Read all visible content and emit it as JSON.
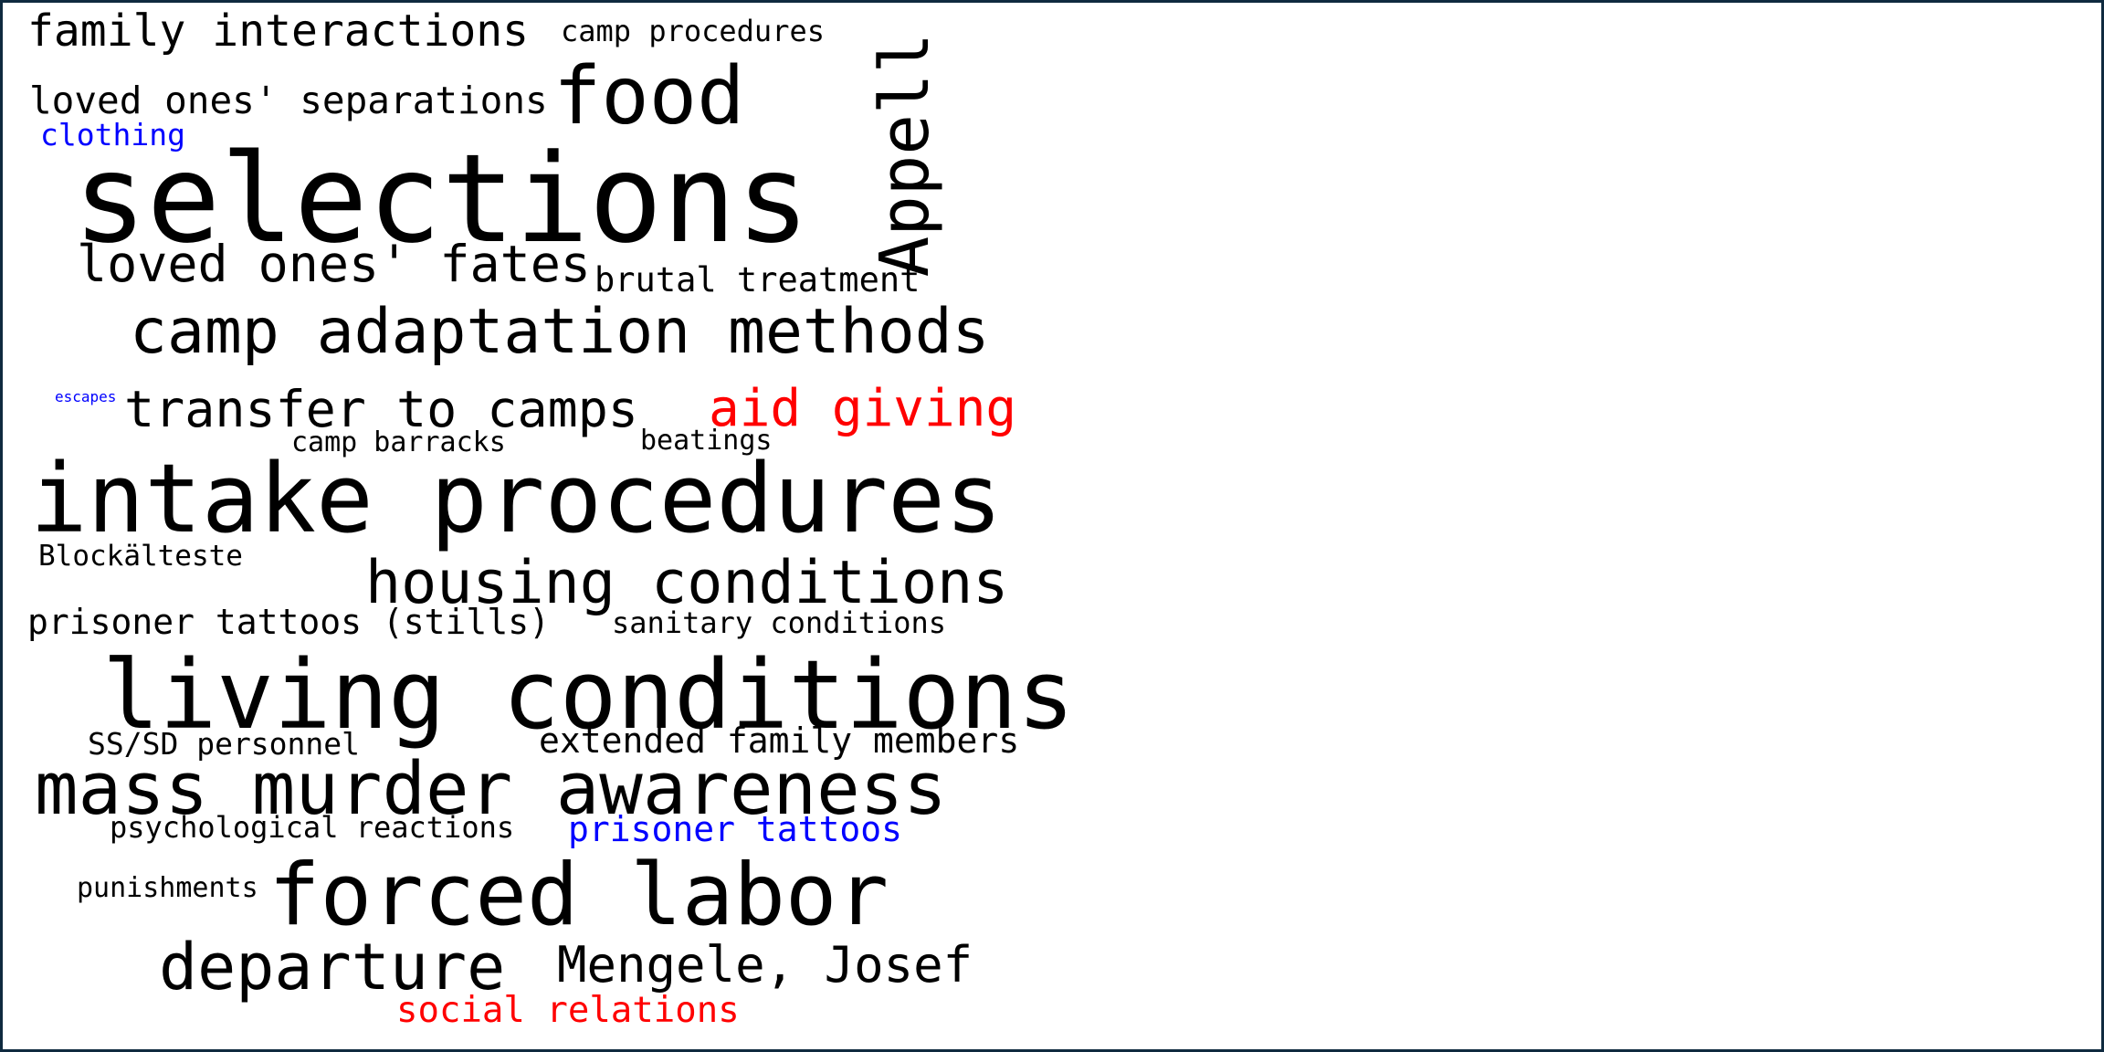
{
  "colors": {
    "default": "#000000",
    "blue": "#0000ff",
    "red": "#ff0000",
    "frame": "#0f2a3f"
  },
  "words": {
    "family_interactions": {
      "text": "family interactions",
      "color": "#000000"
    },
    "camp_procedures": {
      "text": "camp procedures",
      "color": "#000000"
    },
    "loved_ones_separations": {
      "text": "loved ones' separations",
      "color": "#000000"
    },
    "food": {
      "text": "food",
      "color": "#000000"
    },
    "clothing": {
      "text": "clothing",
      "color": "#0000ff"
    },
    "appell": {
      "text": "Appell",
      "color": "#000000"
    },
    "selections": {
      "text": "selections",
      "color": "#000000"
    },
    "loved_ones_fates": {
      "text": "loved ones' fates",
      "color": "#000000"
    },
    "brutal_treatment": {
      "text": "brutal treatment",
      "color": "#000000"
    },
    "camp_adaptation_methods": {
      "text": "camp adaptation methods",
      "color": "#000000"
    },
    "escapes": {
      "text": "escapes",
      "color": "#0000ff"
    },
    "transfer_to_camps": {
      "text": "transfer to camps",
      "color": "#000000"
    },
    "aid_giving": {
      "text": "aid giving",
      "color": "#ff0000"
    },
    "camp_barracks": {
      "text": "camp barracks",
      "color": "#000000"
    },
    "beatings": {
      "text": "beatings",
      "color": "#000000"
    },
    "intake_procedures": {
      "text": "intake procedures",
      "color": "#000000"
    },
    "blockalteste": {
      "text": "Blockälteste",
      "color": "#000000"
    },
    "housing_conditions": {
      "text": "housing conditions",
      "color": "#000000"
    },
    "prisoner_tattoos_stills": {
      "text": "prisoner tattoos (stills)",
      "color": "#000000"
    },
    "sanitary_conditions": {
      "text": "sanitary conditions",
      "color": "#000000"
    },
    "living_conditions": {
      "text": "living conditions",
      "color": "#000000"
    },
    "ss_sd_personnel": {
      "text": "SS/SD personnel",
      "color": "#000000"
    },
    "extended_family_members": {
      "text": "extended family members",
      "color": "#000000"
    },
    "mass_murder_awareness": {
      "text": "mass murder awareness",
      "color": "#000000"
    },
    "psychological_reactions": {
      "text": "psychological reactions",
      "color": "#000000"
    },
    "prisoner_tattoos": {
      "text": "prisoner tattoos",
      "color": "#0000ff"
    },
    "punishments": {
      "text": "punishments",
      "color": "#000000"
    },
    "forced_labor": {
      "text": "forced labor",
      "color": "#000000"
    },
    "departure": {
      "text": "departure",
      "color": "#000000"
    },
    "mengele_josef": {
      "text": "Mengele, Josef",
      "color": "#000000"
    },
    "social_relations": {
      "text": "social relations",
      "color": "#ff0000"
    }
  }
}
